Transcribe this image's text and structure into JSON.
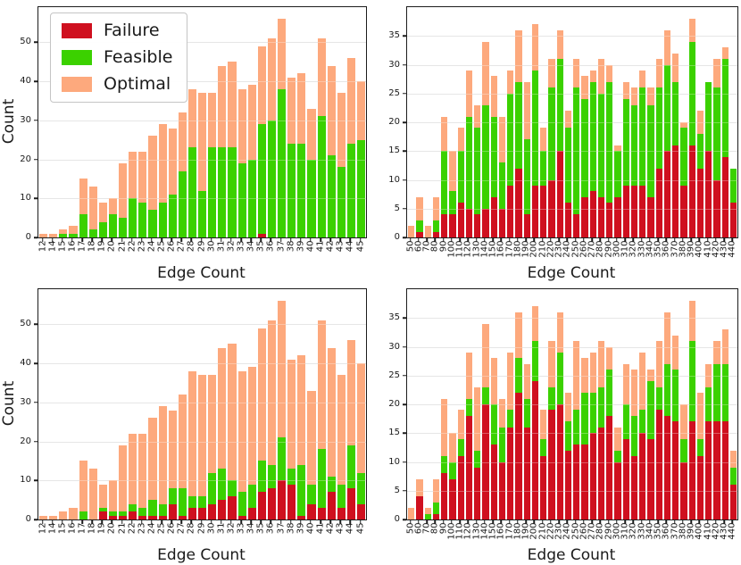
{
  "colors": {
    "failure": "#cf101f",
    "feasible": "#3bd100",
    "optimal": "#fda97d",
    "grid": "#dcdcdc",
    "spine": "#1c1c1c"
  },
  "legend": {
    "items": [
      {
        "key": "failure",
        "label": "Failure"
      },
      {
        "key": "feasible",
        "label": "Feasible"
      },
      {
        "key": "optimal",
        "label": "Optimal"
      }
    ]
  },
  "chart_data": [
    {
      "id": "top-left",
      "type": "bar",
      "stacked": true,
      "show_legend": true,
      "title": "",
      "xlabel": "Edge Count",
      "ylabel": "Count",
      "ylim": [
        0,
        59
      ],
      "yticks": [
        0,
        10,
        20,
        30,
        40,
        50
      ],
      "grid": true,
      "categories": [
        "12",
        "14",
        "15",
        "16",
        "17",
        "18",
        "19",
        "20",
        "21",
        "22",
        "23",
        "24",
        "25",
        "26",
        "27",
        "28",
        "29",
        "30",
        "31",
        "32",
        "33",
        "34",
        "35",
        "36",
        "37",
        "38",
        "39",
        "40",
        "41",
        "42",
        "43",
        "44",
        "45"
      ],
      "series": [
        {
          "key": "failure",
          "name": "Failure",
          "values": [
            0,
            0,
            0,
            0,
            0,
            0,
            0,
            0,
            0,
            0,
            0,
            0,
            0,
            0,
            0,
            0,
            0,
            0,
            0,
            0,
            0,
            0,
            1,
            0,
            0,
            0,
            0,
            0,
            0,
            0,
            0,
            0,
            0
          ]
        },
        {
          "key": "feasible",
          "name": "Feasible",
          "values": [
            0,
            0,
            1,
            1,
            6,
            2,
            4,
            6,
            5,
            10,
            9,
            7,
            9,
            11,
            17,
            23,
            12,
            23,
            23,
            23,
            19,
            20,
            28,
            30,
            38,
            24,
            24,
            20,
            31,
            21,
            18,
            24,
            25
          ]
        },
        {
          "key": "optimal",
          "name": "Optimal",
          "values": [
            1,
            1,
            1,
            2,
            9,
            11,
            5,
            4,
            14,
            12,
            13,
            19,
            20,
            17,
            15,
            15,
            25,
            14,
            21,
            22,
            19,
            19,
            20,
            21,
            18,
            17,
            18,
            13,
            20,
            23,
            19,
            22,
            15
          ]
        }
      ]
    },
    {
      "id": "top-right",
      "type": "bar",
      "stacked": true,
      "show_legend": false,
      "title": "",
      "xlabel": "Edge Count",
      "ylabel": "",
      "ylim": [
        0,
        40
      ],
      "yticks": [
        0,
        5,
        10,
        15,
        20,
        25,
        30,
        35
      ],
      "grid": true,
      "categories": [
        "50",
        "60",
        "70",
        "80",
        "90",
        "100",
        "110",
        "120",
        "130",
        "140",
        "150",
        "160",
        "170",
        "180",
        "190",
        "200",
        "210",
        "220",
        "230",
        "240",
        "250",
        "260",
        "270",
        "280",
        "290",
        "300",
        "310",
        "320",
        "330",
        "340",
        "350",
        "360",
        "370",
        "380",
        "390",
        "400",
        "410",
        "420",
        "430",
        "440"
      ],
      "series": [
        {
          "key": "failure",
          "name": "Failure",
          "values": [
            0,
            1,
            0,
            1,
            4,
            4,
            6,
            5,
            4,
            5,
            7,
            5,
            9,
            12,
            4,
            9,
            9,
            10,
            15,
            6,
            4,
            7,
            8,
            7,
            6,
            7,
            9,
            9,
            9,
            7,
            12,
            15,
            16,
            9,
            16,
            12,
            15,
            10,
            14,
            6
          ]
        },
        {
          "key": "feasible",
          "name": "Feasible",
          "values": [
            0,
            2,
            0,
            2,
            11,
            4,
            9,
            16,
            15,
            18,
            14,
            8,
            16,
            15,
            13,
            20,
            6,
            16,
            16,
            13,
            22,
            17,
            19,
            18,
            21,
            8,
            15,
            14,
            17,
            16,
            14,
            15,
            11,
            10,
            18,
            6,
            12,
            16,
            17,
            6
          ]
        },
        {
          "key": "optimal",
          "name": "Optimal",
          "values": [
            2,
            4,
            2,
            4,
            6,
            7,
            4,
            8,
            4,
            11,
            7,
            8,
            4,
            9,
            10,
            8,
            4,
            5,
            5,
            3,
            5,
            4,
            2,
            6,
            3,
            1,
            3,
            3,
            3,
            3,
            5,
            6,
            5,
            1,
            4,
            4,
            0,
            5,
            2,
            0
          ]
        }
      ]
    },
    {
      "id": "bottom-left",
      "type": "bar",
      "stacked": true,
      "show_legend": false,
      "title": "",
      "xlabel": "Edge Count",
      "ylabel": "Count",
      "ylim": [
        0,
        59
      ],
      "yticks": [
        0,
        10,
        20,
        30,
        40,
        50
      ],
      "grid": true,
      "categories": [
        "12",
        "14",
        "15",
        "16",
        "17",
        "18",
        "19",
        "20",
        "21",
        "22",
        "23",
        "24",
        "25",
        "26",
        "27",
        "28",
        "29",
        "30",
        "31",
        "32",
        "33",
        "34",
        "35",
        "36",
        "37",
        "38",
        "39",
        "40",
        "41",
        "42",
        "43",
        "44",
        "45"
      ],
      "series": [
        {
          "key": "failure",
          "name": "Failure",
          "values": [
            0,
            0,
            0,
            0,
            0,
            0,
            2,
            1,
            1,
            2,
            1,
            1,
            1,
            4,
            1,
            3,
            3,
            4,
            5,
            6,
            1,
            3,
            7,
            8,
            10,
            9,
            1,
            4,
            3,
            7,
            3,
            8,
            4
          ]
        },
        {
          "key": "feasible",
          "name": "Feasible",
          "values": [
            0,
            0,
            0,
            0,
            2,
            0,
            1,
            1,
            1,
            2,
            2,
            4,
            3,
            4,
            7,
            3,
            3,
            8,
            8,
            4,
            6,
            6,
            8,
            6,
            11,
            4,
            13,
            5,
            15,
            4,
            6,
            11,
            8
          ]
        },
        {
          "key": "optimal",
          "name": "Optimal",
          "values": [
            1,
            1,
            2,
            3,
            13,
            13,
            6,
            8,
            17,
            18,
            19,
            21,
            25,
            20,
            24,
            32,
            31,
            25,
            31,
            35,
            31,
            30,
            34,
            37,
            35,
            28,
            28,
            24,
            33,
            33,
            28,
            27,
            28
          ]
        }
      ]
    },
    {
      "id": "bottom-right",
      "type": "bar",
      "stacked": true,
      "show_legend": false,
      "title": "",
      "xlabel": "Edge Count",
      "ylabel": "",
      "ylim": [
        0,
        40
      ],
      "yticks": [
        0,
        5,
        10,
        15,
        20,
        25,
        30,
        35
      ],
      "grid": true,
      "categories": [
        "50",
        "60",
        "70",
        "80",
        "90",
        "100",
        "110",
        "120",
        "130",
        "140",
        "150",
        "160",
        "170",
        "180",
        "190",
        "200",
        "210",
        "220",
        "230",
        "240",
        "250",
        "260",
        "270",
        "280",
        "290",
        "300",
        "310",
        "320",
        "330",
        "340",
        "350",
        "360",
        "370",
        "380",
        "390",
        "400",
        "410",
        "420",
        "430",
        "440"
      ],
      "series": [
        {
          "key": "failure",
          "name": "Failure",
          "values": [
            0,
            4,
            0,
            1,
            8,
            7,
            11,
            18,
            9,
            20,
            13,
            10,
            16,
            22,
            16,
            24,
            11,
            19,
            20,
            12,
            13,
            13,
            15,
            16,
            18,
            10,
            14,
            11,
            15,
            14,
            19,
            18,
            17,
            10,
            17,
            11,
            17,
            17,
            17,
            6
          ]
        },
        {
          "key": "feasible",
          "name": "Feasible",
          "values": [
            0,
            0,
            1,
            2,
            3,
            3,
            3,
            3,
            3,
            3,
            7,
            6,
            3,
            6,
            5,
            7,
            3,
            4,
            9,
            5,
            6,
            9,
            7,
            7,
            8,
            2,
            6,
            7,
            4,
            10,
            4,
            9,
            9,
            4,
            14,
            3,
            6,
            10,
            10,
            3
          ]
        },
        {
          "key": "optimal",
          "name": "Optimal",
          "values": [
            2,
            3,
            1,
            4,
            10,
            5,
            5,
            8,
            11,
            11,
            8,
            5,
            10,
            8,
            6,
            6,
            5,
            8,
            7,
            5,
            12,
            6,
            7,
            8,
            4,
            4,
            7,
            8,
            10,
            2,
            8,
            9,
            6,
            6,
            7,
            8,
            4,
            4,
            6,
            3
          ]
        }
      ]
    }
  ]
}
